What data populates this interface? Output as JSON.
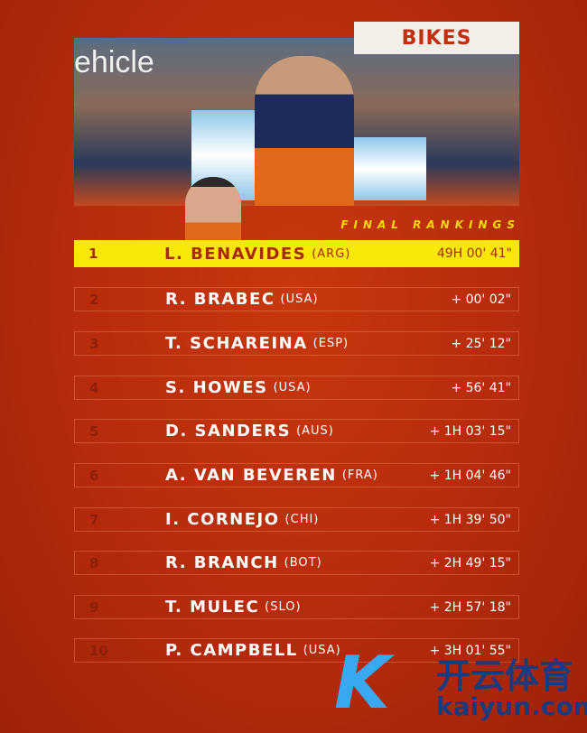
{
  "header": {
    "category": "BIKES",
    "subtitle": "FINAL RANKINGS",
    "photo_text": "ehicle"
  },
  "rankings": [
    {
      "pos": "1",
      "name": "L. BENAVIDES",
      "nat": "(ARG)",
      "time": "49H 00' 41\""
    },
    {
      "pos": "2",
      "name": "R. BRABEC",
      "nat": "(USA)",
      "time": "+ 00' 02\""
    },
    {
      "pos": "3",
      "name": "T. SCHAREINA",
      "nat": "(ESP)",
      "time": "+ 25' 12\""
    },
    {
      "pos": "4",
      "name": "S. HOWES",
      "nat": "(USA)",
      "time": "+ 56' 41\""
    },
    {
      "pos": "5",
      "name": "D. SANDERS",
      "nat": "(AUS)",
      "time": "+ 1H 03' 15\""
    },
    {
      "pos": "6",
      "name": "A. VAN BEVEREN",
      "nat": "(FRA)",
      "time": "+ 1H 04' 46\""
    },
    {
      "pos": "7",
      "name": "I. CORNEJO",
      "nat": "(CHI)",
      "time": "+ 1H 39' 50\""
    },
    {
      "pos": "8",
      "name": "R. BRANCH",
      "nat": "(BOT)",
      "time": "+ 2H 49' 15\""
    },
    {
      "pos": "9",
      "name": "T. MULEC",
      "nat": "(SLO)",
      "time": "+ 2H 57' 18\""
    },
    {
      "pos": "10",
      "name": "P. CAMPBELL",
      "nat": "(USA)",
      "time": "+ 3H 01' 55\""
    }
  ],
  "watermark": {
    "mark": "K",
    "cn": "开云体育",
    "en": "kaiyun.com"
  },
  "colors": {
    "background": "#b82c0c",
    "highlight": "#f7e80a",
    "accent": "#f5d90a"
  }
}
